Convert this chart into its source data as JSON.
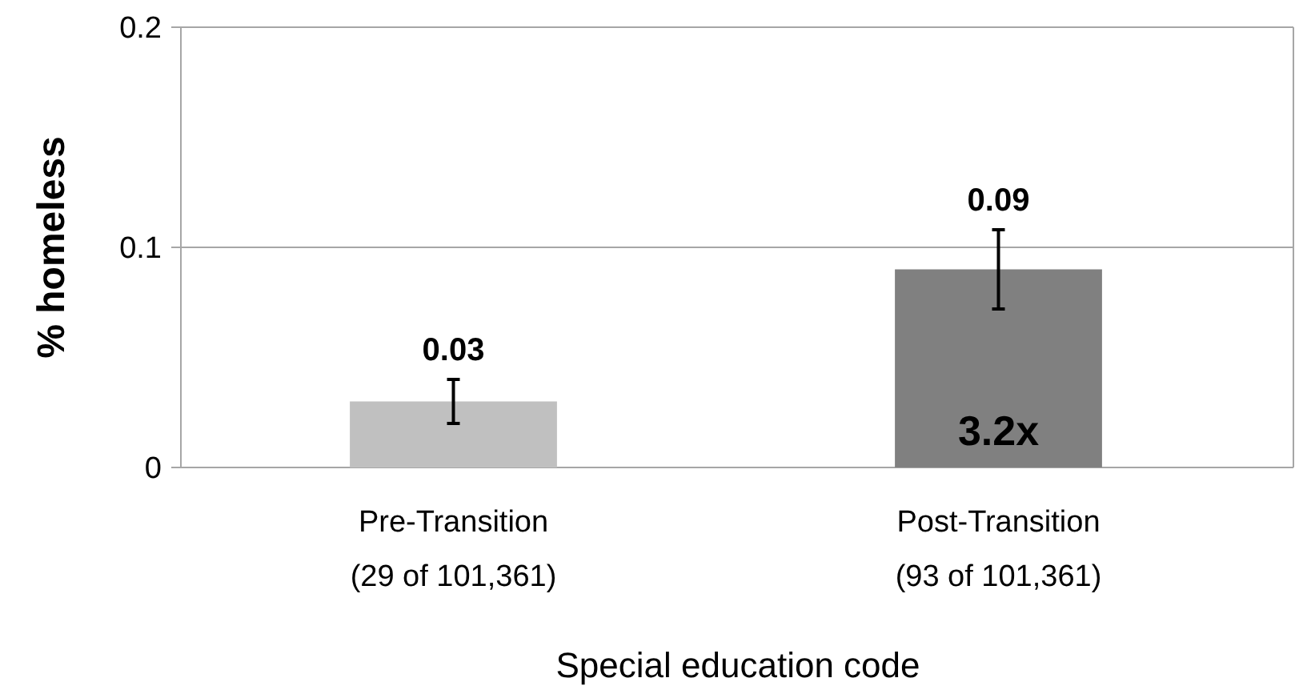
{
  "chart_data": {
    "type": "bar",
    "xlabel": "Special education code",
    "ylabel": "% homeless",
    "categories": [
      "Pre-Transition\n(29 of 101,361)",
      "Post-Transition\n(93 of 101,361)"
    ],
    "values": [
      0.03,
      0.09
    ],
    "colors": [
      "#c0c0c0",
      "#808080"
    ],
    "errors": [
      [
        0.02,
        0.04
      ],
      [
        0.072,
        0.108
      ]
    ],
    "data_labels": true,
    "annotations": [
      "3.2x"
    ],
    "ylim": [
      0,
      0.2
    ],
    "yticks": [
      0,
      0.1,
      0.2
    ],
    "grid": "y"
  }
}
